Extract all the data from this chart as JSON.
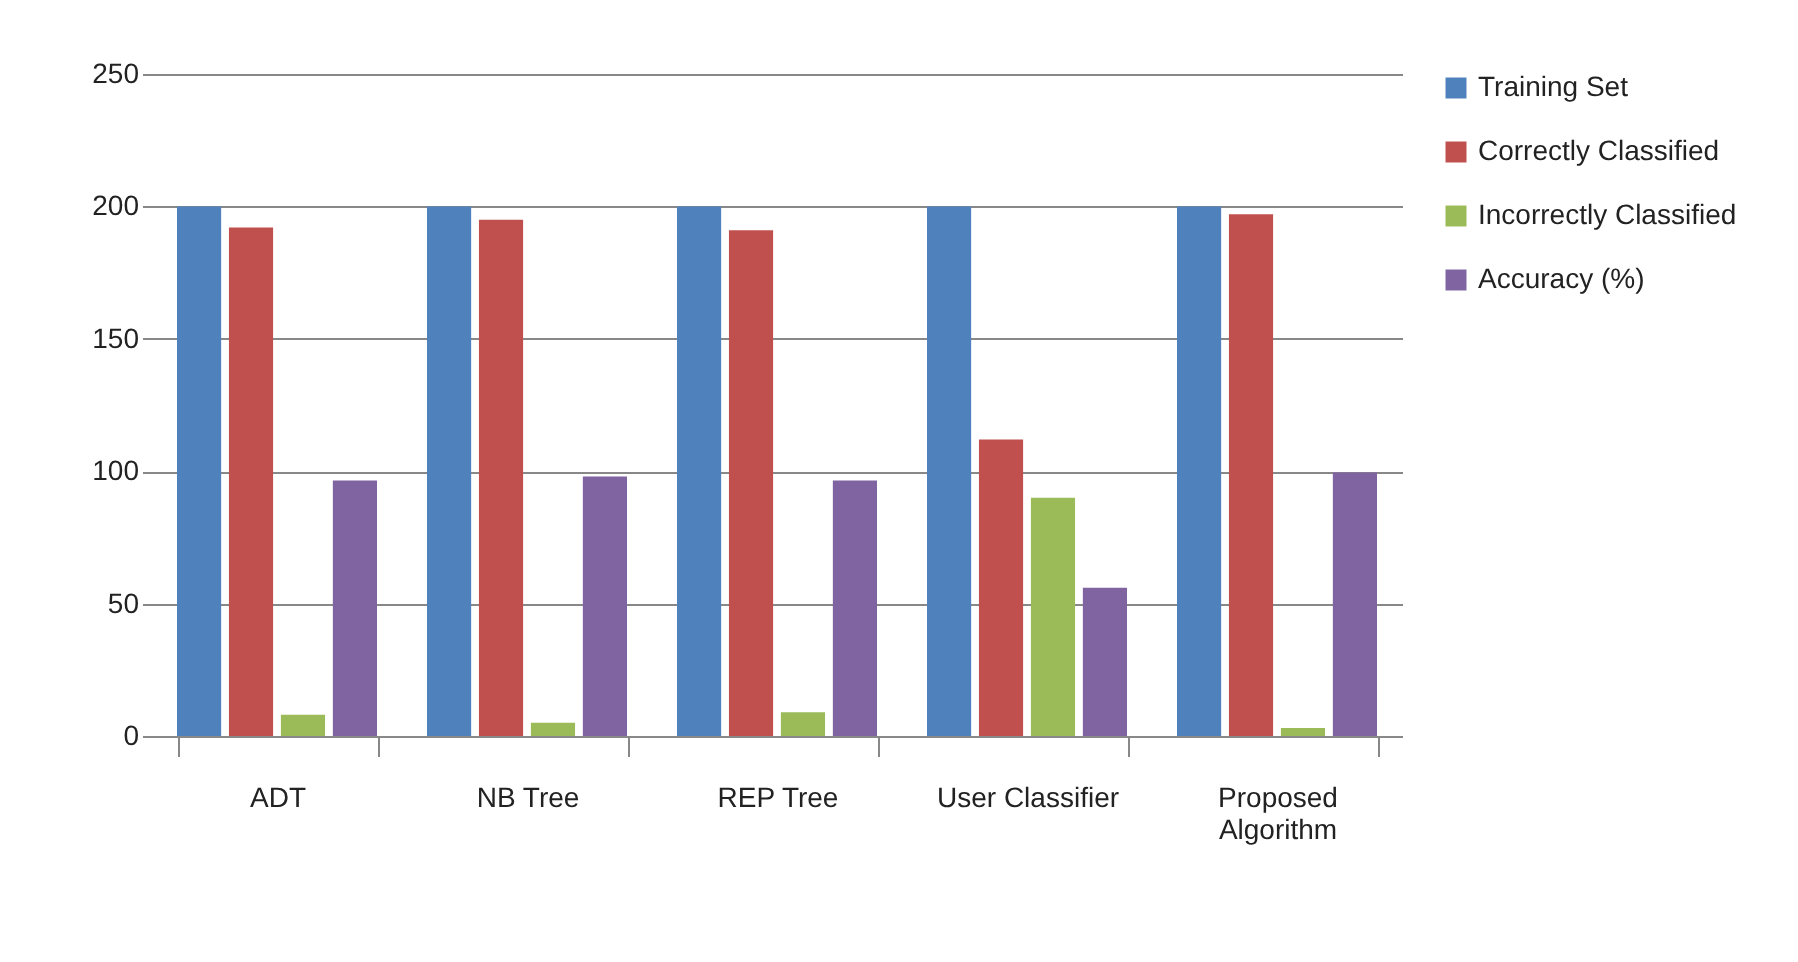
{
  "chart_data": {
    "type": "bar",
    "categories": [
      "ADT",
      "NB Tree",
      "REP Tree",
      "User Classifier",
      "Proposed Algorithm"
    ],
    "series": [
      {
        "name": "Training Set",
        "color": "#4f81bd",
        "values": [
          200,
          200,
          200,
          200,
          200
        ]
      },
      {
        "name": "Correctly Classified",
        "color": "#c0504d",
        "values": [
          192,
          195,
          191,
          112,
          197
        ]
      },
      {
        "name": "Incorrectly Classified",
        "color": "#9bbb59",
        "values": [
          8,
          5,
          9,
          90,
          3
        ]
      },
      {
        "name": "Accuracy (%)",
        "color": "#8064a2",
        "values": [
          96.5,
          98,
          96.5,
          56,
          99.5
        ]
      }
    ],
    "ylim": [
      0,
      250
    ],
    "yticks": [
      0,
      50,
      100,
      150,
      200,
      250
    ],
    "grid": "y",
    "legend": "right"
  }
}
